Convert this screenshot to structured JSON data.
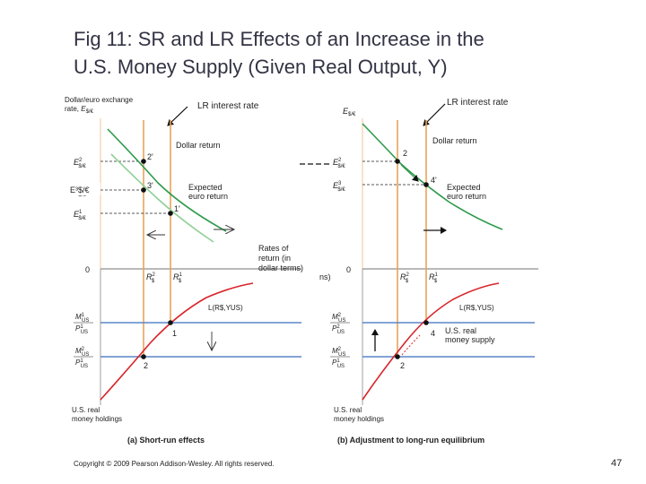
{
  "slide": {
    "title_line1": "Fig 11: SR and LR Effects of an Increase in the",
    "title_line2": "U.S. Money Supply (Given Real Output, Y)",
    "copyright": "Copyright © 2009 Pearson Addison-Wesley. All rights reserved.",
    "page_number": "47"
  },
  "colors": {
    "green": "#2e9a4a",
    "light_green": "#8fcf95",
    "orange": "#e8a35a",
    "red": "#d8242a",
    "blue": "#5a86c8",
    "dark": "#222222"
  },
  "panel_a": {
    "y_axis_label_1": "Dollar/euro exchange",
    "y_axis_label_2": "rate,",
    "E_symbol": "E",
    "sub_rate": "$/€",
    "sup_1": "1",
    "sup_2": "2",
    "sup_3": "3",
    "annotation_E3": "E³$/€",
    "annotation_lr": "LR interest rate",
    "dollar_return": "Dollar return",
    "expected_1": "Expected",
    "expected_2": "euro return",
    "point_2p": "2'",
    "point_3p": "3'",
    "point_1p": "1'",
    "zero": "0",
    "rates_1": "Rates of",
    "rates_2": "return (in",
    "rates_3": "dollar terms)",
    "R_symbol": "R",
    "dollar_sub": "$",
    "M_symbol": "M",
    "P_symbol": "P",
    "us_sub": "US",
    "L_label": "L(R$,YUS)",
    "point_1": "1",
    "point_2": "2",
    "holdings_1": "U.S. real",
    "holdings_2": "money holdings",
    "caption": "(a) Short-run effects"
  },
  "panel_b": {
    "annotation_lr": "LR interest rate",
    "E_symbol": "E",
    "sub_rate": "$/€",
    "sup_1": "1",
    "sup_2": "2",
    "sup_3": "3",
    "dollar_return": "Dollar return",
    "expected_1": "Expected",
    "expected_2": "euro return",
    "point_2": "2",
    "point_4p": "4'",
    "zero": "0",
    "cut_label": "ns)",
    "R_symbol": "R",
    "dollar_sub": "$",
    "M_symbol": "M",
    "P_symbol": "P",
    "us_sub": "US",
    "L_label": "L(R$,YUS)",
    "supply_1": "U.S. real",
    "supply_2": "money supply",
    "point_4": "4",
    "point_2_low": "2",
    "holdings_1": "U.S. real",
    "holdings_2": "money holdings",
    "caption": "(b) Adjustment to long-run equilibrium"
  }
}
